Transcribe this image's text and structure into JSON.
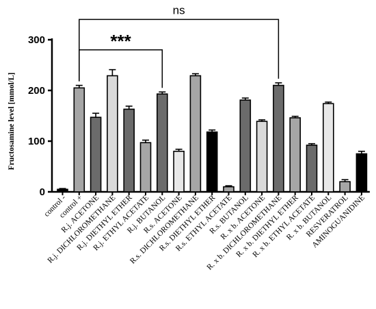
{
  "chart_data": {
    "type": "bar",
    "ylabel": "Fructosamine level [mmol/L]",
    "ylim": [
      0,
      300
    ],
    "yticks": [
      0,
      100,
      200,
      300
    ],
    "grid": false,
    "legend": "none",
    "categories": [
      "control -",
      "control +",
      "R.j. ACETONE",
      "R.j. DICHLOROMETHANE",
      "R.j. DIETHYL ETHER",
      "R.j. ETHYL ACETATE",
      "R.j. BUTANOL",
      "R.s. ACETONE",
      "R.s. DICHLOROMETHANE",
      "R.s. DIETHYL ETHER",
      "R.s. ETHYL ACETATE",
      "R.s. BUTANOL",
      "R. x b. ACETONE",
      "R. x b. DICHLOROMETHANE",
      "R. x b. DIETHYL ETHER",
      "R. x b. ETHYL ACETATE",
      "R. x b. BUTANOL",
      "RESVERATROL",
      "AMINOGUANIDINE"
    ],
    "values": [
      5,
      205,
      147,
      229,
      163,
      97,
      193,
      80,
      229,
      118,
      10,
      181,
      139,
      210,
      146,
      92,
      174,
      20,
      75
    ],
    "errors": [
      1.5,
      5,
      8,
      12,
      6,
      5,
      4,
      4,
      4,
      4,
      2,
      4,
      3,
      5,
      3,
      3,
      3,
      4,
      5
    ],
    "colors": [
      "#000000",
      "#a6a6a6",
      "#6b6b6b",
      "#d9d9d9",
      "#6b6b6b",
      "#a6a6a6",
      "#6b6b6b",
      "#e8e8e8",
      "#a6a6a6",
      "#000000",
      "#a6a6a6",
      "#6b6b6b",
      "#d9d9d9",
      "#6b6b6b",
      "#a6a6a6",
      "#6b6b6b",
      "#e8e8e8",
      "#a6a6a6",
      "#000000"
    ],
    "annotations": [
      {
        "text": "***",
        "from": 1,
        "to": 6,
        "level": 280
      },
      {
        "text": "ns",
        "from": 1,
        "to": 13,
        "level": 340
      }
    ]
  }
}
